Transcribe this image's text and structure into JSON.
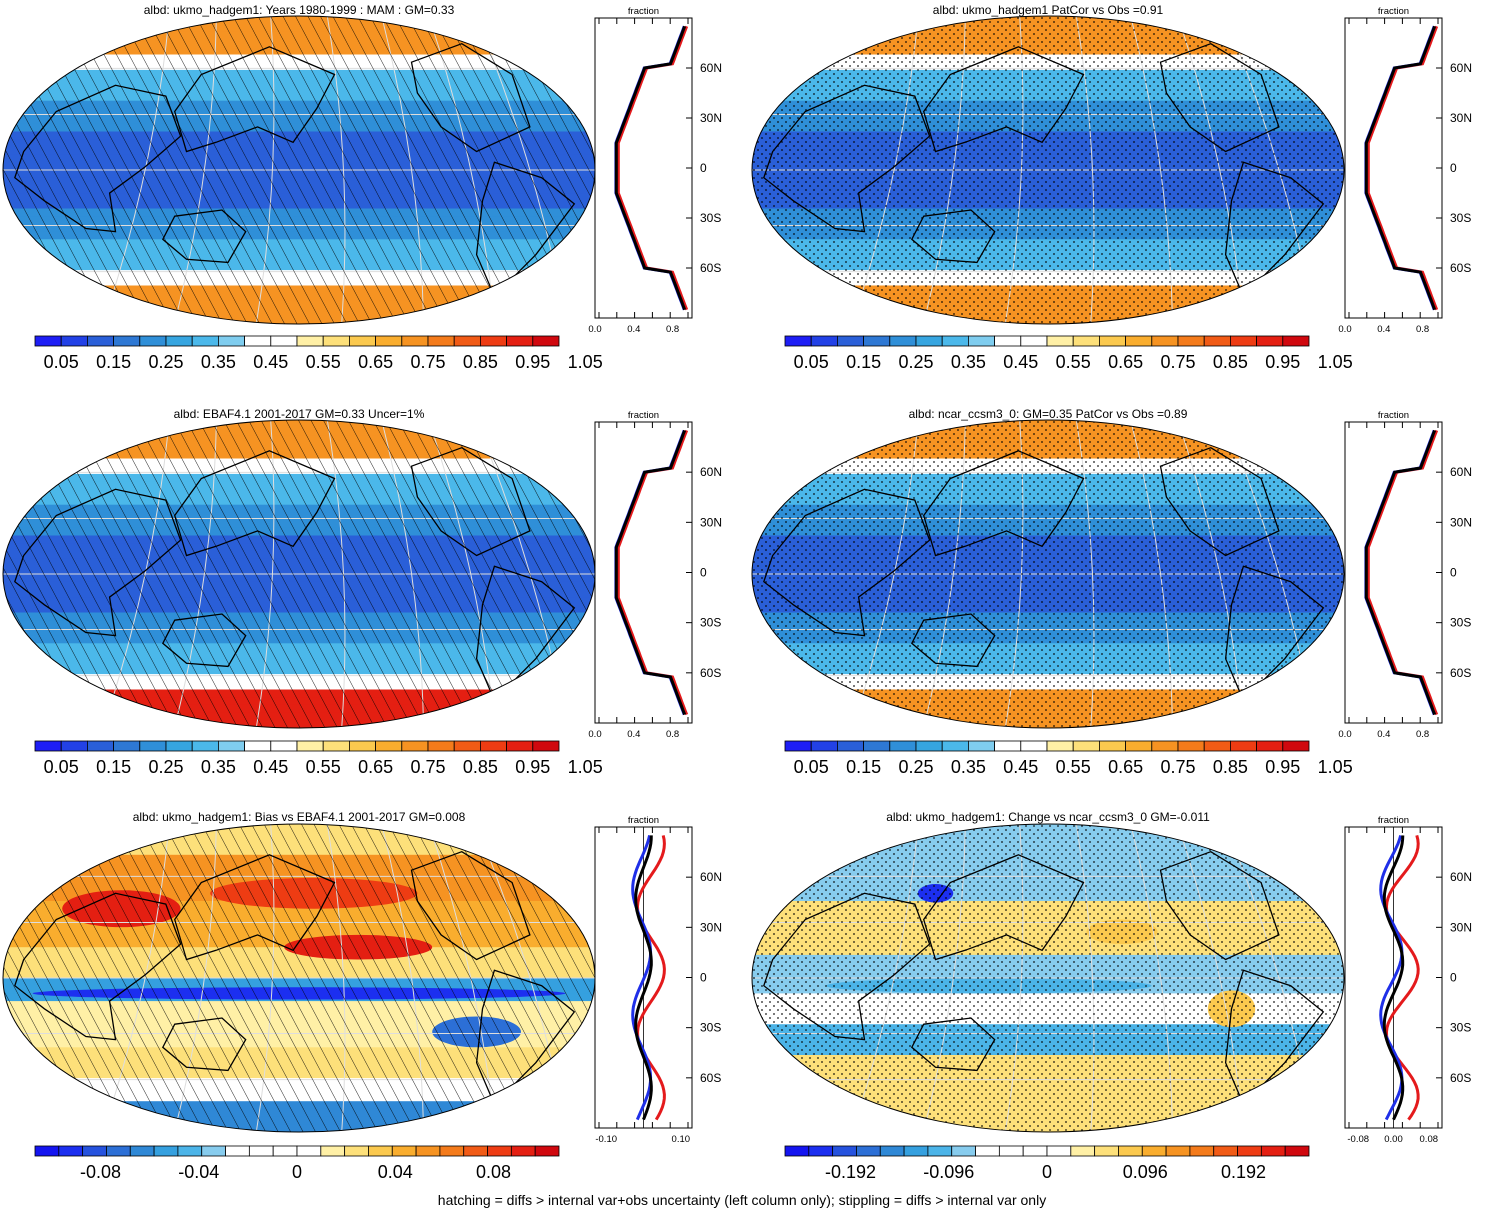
{
  "caption": "hatching = diffs > internal var+obs uncertainty (left column only); stippling = diffs > internal var only",
  "colors": {
    "scale_seq": [
      "#1e1ef5",
      "#2241e6",
      "#2a5fd8",
      "#2e78d4",
      "#2f8fd8",
      "#36a5e0",
      "#4bb8ea",
      "#7fcdef",
      "#ffffff",
      "#ffffff",
      "#fff0a6",
      "#fde07a",
      "#fbc94e",
      "#f9ad2e",
      "#f69322",
      "#f47b1b",
      "#f15b16",
      "#ee3c13",
      "#e41f12",
      "#d0080e"
    ],
    "scale_div": [
      "#1414f0",
      "#1c2ff0",
      "#2552de",
      "#2c6fd6",
      "#2f88d6",
      "#35a0df",
      "#4bb4e8",
      "#87ccee",
      "#ffffff",
      "#ffffff",
      "#ffffff",
      "#ffffff",
      "#fff0a6",
      "#fde07a",
      "#fbc94e",
      "#f9ad2e",
      "#f69322",
      "#f47b1b",
      "#f15b16",
      "#ee3c13",
      "#e41f12",
      "#d0080e"
    ],
    "model": "#e41a1c",
    "obs": "#1f2fe8",
    "ref": "#000000"
  },
  "panels": [
    {
      "title": "albd: ukmo_hadgem1: Years 1980-1999 : MAM : GM=0.33",
      "type": "abs",
      "pattern": "hatch",
      "colorbar": {
        "labels": [
          "0.05",
          "0.15",
          "0.25",
          "0.35",
          "0.45",
          "0.55",
          "0.65",
          "0.75",
          "0.85",
          "0.95",
          "1.05"
        ]
      },
      "zonal": {
        "header": "fraction",
        "xticks": [
          "0.0",
          "0.4",
          "0.8"
        ],
        "xmin": 0,
        "xmax": 1,
        "lat_labels": [
          "60N",
          "30N",
          "0",
          "30S",
          "60S"
        ],
        "zero_line": false
      }
    },
    {
      "title": "albd: ukmo_hadgem1 PatCor vs Obs =0.91",
      "type": "abs",
      "pattern": "stipple",
      "colorbar": {
        "labels": [
          "0.05",
          "0.15",
          "0.25",
          "0.35",
          "0.45",
          "0.55",
          "0.65",
          "0.75",
          "0.85",
          "0.95",
          "1.05"
        ]
      },
      "zonal": {
        "header": "fraction",
        "xticks": [
          "0.0",
          "0.4",
          "0.8"
        ],
        "xmin": 0,
        "xmax": 1,
        "lat_labels": [
          "60N",
          "30N",
          "0",
          "30S",
          "60S"
        ],
        "zero_line": false
      }
    },
    {
      "title": "albd: EBAF4.1 2001-2017 GM=0.33 Uncer=1%",
      "type": "obs",
      "pattern": "hatch",
      "colorbar": {
        "labels": [
          "0.05",
          "0.15",
          "0.25",
          "0.35",
          "0.45",
          "0.55",
          "0.65",
          "0.75",
          "0.85",
          "0.95",
          "1.05"
        ]
      },
      "zonal": {
        "header": "fraction",
        "xticks": [
          "0.0",
          "0.4",
          "0.8"
        ],
        "xmin": 0,
        "xmax": 1,
        "lat_labels": [
          "60N",
          "30N",
          "0",
          "30S",
          "60S"
        ],
        "zero_line": false
      }
    },
    {
      "title": "albd: ncar_ccsm3_0: GM=0.35 PatCor vs Obs =0.89",
      "type": "abs",
      "pattern": "stipple",
      "colorbar": {
        "labels": [
          "0.05",
          "0.15",
          "0.25",
          "0.35",
          "0.45",
          "0.55",
          "0.65",
          "0.75",
          "0.85",
          "0.95",
          "1.05"
        ]
      },
      "zonal": {
        "header": "fraction",
        "xticks": [
          "0.0",
          "0.4",
          "0.8"
        ],
        "xmin": 0,
        "xmax": 1,
        "lat_labels": [
          "60N",
          "30N",
          "0",
          "30S",
          "60S"
        ],
        "zero_line": false
      }
    },
    {
      "title": "albd: ukmo_hadgem1: Bias vs EBAF4.1 2001-2017 GM=0.008",
      "type": "bias",
      "pattern": "hatch",
      "colorbar": {
        "labels": [
          "-0.08",
          "-0.04",
          "0",
          "0.04",
          "0.08"
        ]
      },
      "zonal": {
        "header": "fraction",
        "xticks": [
          "-0.10",
          "0.10"
        ],
        "xmin": -0.13,
        "xmax": 0.13,
        "lat_labels": [
          "60N",
          "30N",
          "0",
          "30S",
          "60S"
        ],
        "zero_line": true
      }
    },
    {
      "title": "albd: ukmo_hadgem1: Change vs ncar_ccsm3_0 GM=-0.011",
      "type": "change",
      "pattern": "stipple",
      "colorbar": {
        "labels": [
          "-0.192",
          "-0.096",
          "0",
          "0.096",
          "0.192"
        ]
      },
      "zonal": {
        "header": "fraction",
        "xticks": [
          "-0.08",
          "0.00",
          "0.08"
        ],
        "xmin": -0.11,
        "xmax": 0.11,
        "lat_labels": [
          "60N",
          "30N",
          "0",
          "30S",
          "60S"
        ],
        "zero_line": true
      }
    }
  ]
}
